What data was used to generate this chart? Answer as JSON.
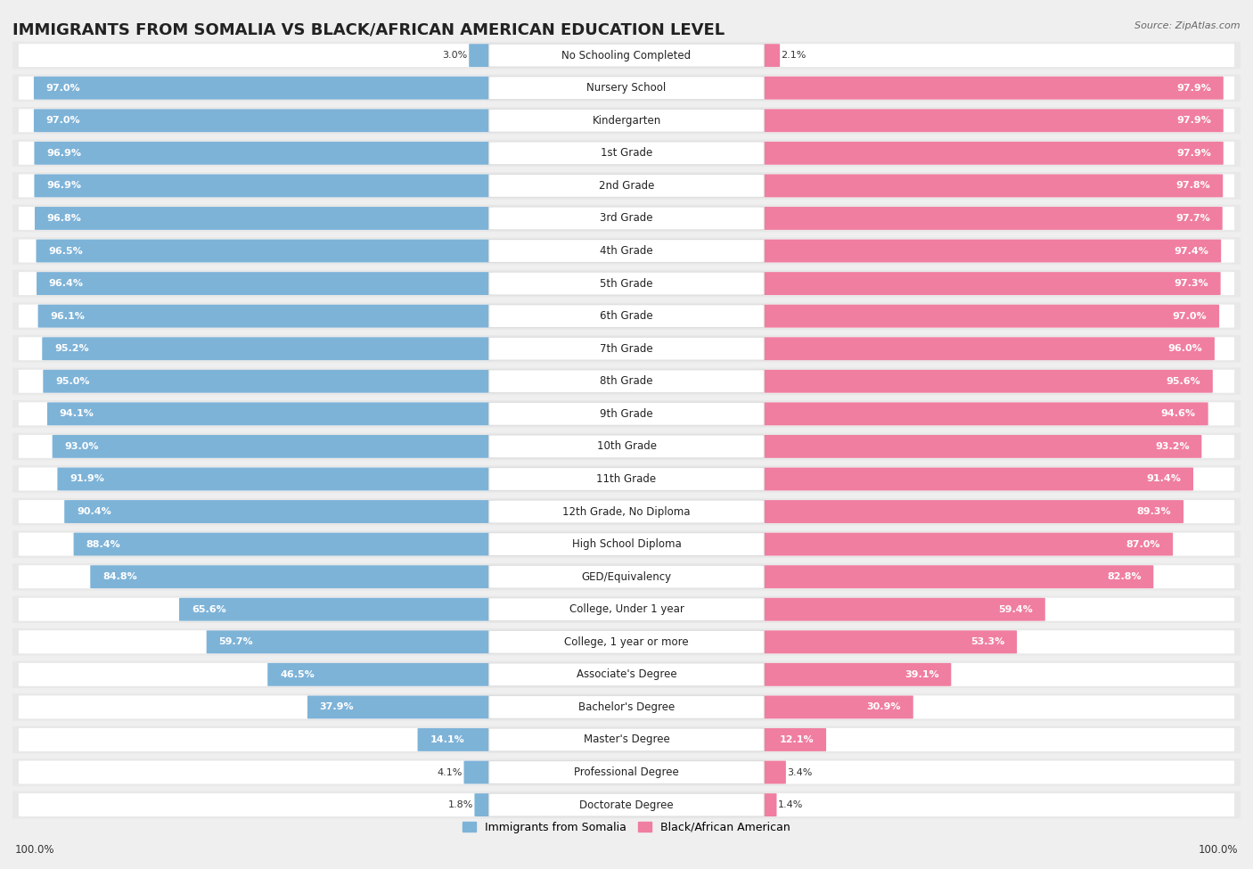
{
  "title": "IMMIGRANTS FROM SOMALIA VS BLACK/AFRICAN AMERICAN EDUCATION LEVEL",
  "source": "Source: ZipAtlas.com",
  "categories": [
    "No Schooling Completed",
    "Nursery School",
    "Kindergarten",
    "1st Grade",
    "2nd Grade",
    "3rd Grade",
    "4th Grade",
    "5th Grade",
    "6th Grade",
    "7th Grade",
    "8th Grade",
    "9th Grade",
    "10th Grade",
    "11th Grade",
    "12th Grade, No Diploma",
    "High School Diploma",
    "GED/Equivalency",
    "College, Under 1 year",
    "College, 1 year or more",
    "Associate's Degree",
    "Bachelor's Degree",
    "Master's Degree",
    "Professional Degree",
    "Doctorate Degree"
  ],
  "somalia_values": [
    3.0,
    97.0,
    97.0,
    96.9,
    96.9,
    96.8,
    96.5,
    96.4,
    96.1,
    95.2,
    95.0,
    94.1,
    93.0,
    91.9,
    90.4,
    88.4,
    84.8,
    65.6,
    59.7,
    46.5,
    37.9,
    14.1,
    4.1,
    1.8
  ],
  "black_values": [
    2.1,
    97.9,
    97.9,
    97.9,
    97.8,
    97.7,
    97.4,
    97.3,
    97.0,
    96.0,
    95.6,
    94.6,
    93.2,
    91.4,
    89.3,
    87.0,
    82.8,
    59.4,
    53.3,
    39.1,
    30.9,
    12.1,
    3.4,
    1.4
  ],
  "somalia_color": "#7EB3D8",
  "black_color": "#F07EA0",
  "background_color": "#efefef",
  "bar_bg_color": "#ffffff",
  "title_fontsize": 13,
  "label_fontsize": 8.5,
  "value_fontsize": 8,
  "legend_somalia": "Immigrants from Somalia",
  "legend_black": "Black/African American"
}
